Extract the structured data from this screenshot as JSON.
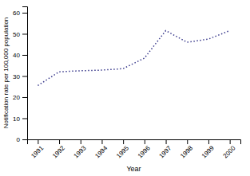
{
  "chart_data": {
    "type": "line",
    "xlabel": "Year",
    "ylabel": "Notification rate per 100,000 population",
    "x": [
      1991,
      1992,
      1993,
      1994,
      1995,
      1996,
      1997,
      1998,
      1999,
      2000
    ],
    "values": [
      25.5,
      32.0,
      32.5,
      32.8,
      33.5,
      38.5,
      51.5,
      46.0,
      47.5,
      51.5
    ],
    "color": "#3a3a8c",
    "line_style": "dotted",
    "xlim": [
      1990.5,
      2000.5
    ],
    "xticks": [
      1991,
      1992,
      1993,
      1994,
      1995,
      1996,
      1997,
      1998,
      1999,
      2000
    ],
    "ylim": [
      0,
      63
    ],
    "yticks": [
      0,
      10,
      20,
      30,
      40,
      50,
      60
    ],
    "grid": false
  }
}
